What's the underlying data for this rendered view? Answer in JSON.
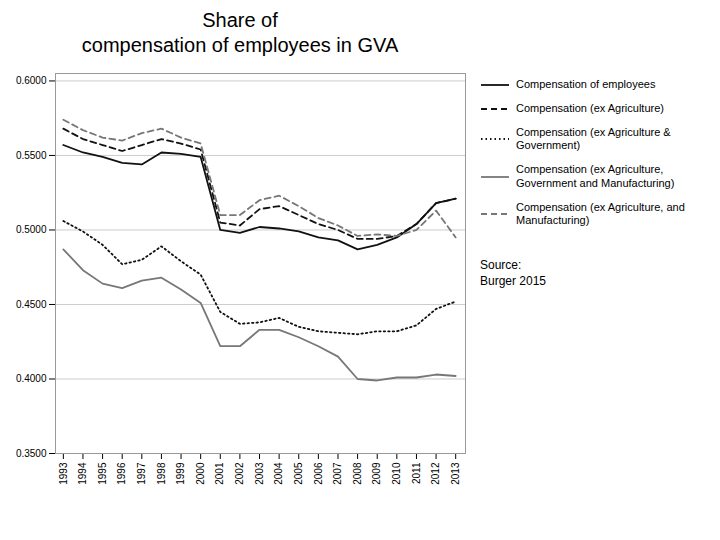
{
  "chart_data": {
    "type": "line",
    "title": "Share of\ncompensation of employees in GVA",
    "annotations": [
      "Source:\nBurger 2015"
    ],
    "x": [
      1993,
      1994,
      1995,
      1996,
      1997,
      1998,
      1999,
      2000,
      2001,
      2002,
      2003,
      2004,
      2005,
      2006,
      2007,
      2008,
      2009,
      2010,
      2011,
      2012,
      2013
    ],
    "series": [
      {
        "name": "Compensation of employees",
        "color": "#111111",
        "line_style": "solid",
        "values": [
          0.557,
          0.552,
          0.549,
          0.545,
          0.544,
          0.552,
          0.551,
          0.549,
          0.5,
          0.498,
          0.502,
          0.501,
          0.499,
          0.495,
          0.493,
          0.487,
          0.49,
          0.495,
          0.504,
          0.518,
          0.521
        ]
      },
      {
        "name": "Compensation (ex Agriculture)",
        "color": "#111111",
        "line_style": "dashed",
        "values": [
          0.568,
          0.561,
          0.557,
          0.553,
          0.557,
          0.561,
          0.558,
          0.554,
          0.505,
          0.503,
          0.514,
          0.516,
          0.51,
          0.504,
          0.5,
          0.494,
          0.494,
          0.496,
          0.504,
          0.518,
          0.521
        ]
      },
      {
        "name": "Compensation (ex Agriculture &\nGovernment)",
        "color": "#111111",
        "line_style": "dotted",
        "values": [
          0.506,
          0.499,
          0.49,
          0.477,
          0.48,
          0.489,
          0.479,
          0.47,
          0.445,
          0.437,
          0.438,
          0.441,
          0.435,
          0.432,
          0.431,
          0.43,
          0.432,
          0.432,
          0.436,
          0.447,
          0.452
        ]
      },
      {
        "name": "Compensation (ex Agriculture,\nGovernment and Manufacturing)",
        "color": "#777777",
        "line_style": "solid",
        "values": [
          0.487,
          0.473,
          0.464,
          0.461,
          0.466,
          0.468,
          0.46,
          0.451,
          0.422,
          0.422,
          0.433,
          0.433,
          0.428,
          0.422,
          0.415,
          0.4,
          0.399,
          0.401,
          0.401,
          0.403,
          0.402
        ]
      },
      {
        "name": "Compensation (ex Agriculture, and\nManufacturing)",
        "color": "#777777",
        "line_style": "dashed",
        "values": [
          0.574,
          0.567,
          0.562,
          0.56,
          0.565,
          0.568,
          0.562,
          0.558,
          0.51,
          0.51,
          0.52,
          0.523,
          0.516,
          0.508,
          0.503,
          0.496,
          0.497,
          0.496,
          0.5,
          0.513,
          0.495
        ]
      }
    ],
    "xlim": [
      1992.6,
      2013.5
    ],
    "xticks": [
      1993,
      1994,
      1995,
      1996,
      1997,
      1998,
      1999,
      2000,
      2001,
      2002,
      2003,
      2004,
      2005,
      2006,
      2007,
      2008,
      2009,
      2010,
      2011,
      2012,
      2013
    ],
    "ylim": [
      0.35,
      0.605
    ],
    "yticks": [
      {
        "value": 0.35,
        "label": "0.3500"
      },
      {
        "value": 0.4,
        "label": "0.4000"
      },
      {
        "value": 0.45,
        "label": "0.4500"
      },
      {
        "value": 0.5,
        "label": "0.5000"
      },
      {
        "value": 0.55,
        "label": "0.5500"
      },
      {
        "value": 0.6,
        "label": "0.6000"
      }
    ],
    "grid": true,
    "legend": "right"
  }
}
